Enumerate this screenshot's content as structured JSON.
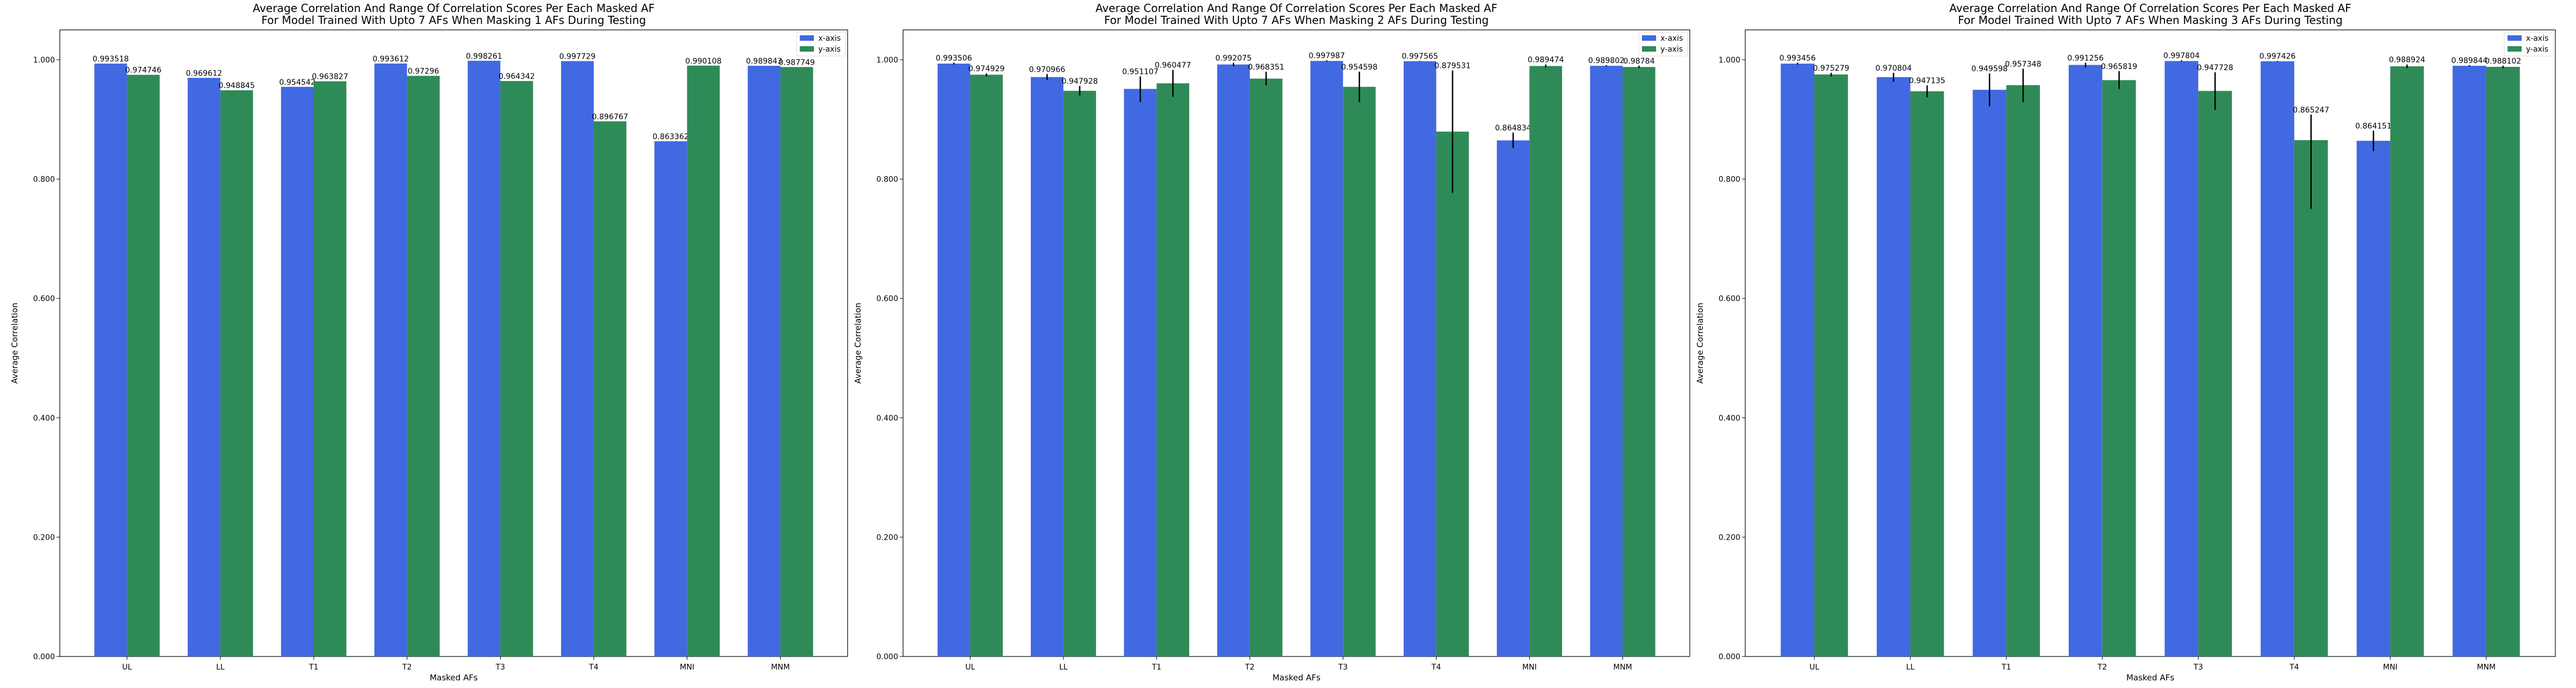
{
  "chart_data": [
    {
      "type": "bar",
      "title": "Average Correlation And Range Of Correlation Scores Per Each Masked AF\nFor Model Trained With Upto 7 AFs When Masking 1 AFs During Testing",
      "xlabel": "Masked AFs",
      "ylabel": "Average Correlation",
      "ylim": [
        0,
        1.05
      ],
      "yticks": [
        "0.000",
        "0.200",
        "0.400",
        "0.600",
        "0.800",
        "1.000"
      ],
      "categories": [
        "UL",
        "LL",
        "T1",
        "T2",
        "T3",
        "T4",
        "MNI",
        "MNM"
      ],
      "legend_position": "top-right",
      "series": [
        {
          "name": "x-axis",
          "color": "#4169e1",
          "values": [
            0.993518,
            0.969612,
            0.954542,
            0.993612,
            0.998261,
            0.997729,
            0.863362,
            0.989843
          ],
          "labels": [
            "0.993518",
            "0.969612",
            "0.954542",
            "0.993612",
            "0.998261",
            "0.997729",
            "0.863362",
            "0.989843"
          ],
          "err_low": [
            0.993518,
            0.969612,
            0.954542,
            0.993612,
            0.998261,
            0.997729,
            0.863362,
            0.989843
          ],
          "err_high": [
            0.993518,
            0.969612,
            0.954542,
            0.993612,
            0.998261,
            0.997729,
            0.863362,
            0.989843
          ]
        },
        {
          "name": "y-axis",
          "color": "#2e8b57",
          "values": [
            0.974746,
            0.948845,
            0.963827,
            0.97296,
            0.964342,
            0.896767,
            0.990108,
            0.987749
          ],
          "labels": [
            "0.974746",
            "0.948845",
            "0.963827",
            "0.97296",
            "0.964342",
            "0.896767",
            "0.990108",
            "0.987749"
          ],
          "err_low": [
            0.974746,
            0.948845,
            0.963827,
            0.97296,
            0.964342,
            0.896767,
            0.990108,
            0.987749
          ],
          "err_high": [
            0.974746,
            0.948845,
            0.963827,
            0.97296,
            0.964342,
            0.896767,
            0.990108,
            0.987749
          ]
        }
      ]
    },
    {
      "type": "bar",
      "title": "Average Correlation And Range Of Correlation Scores Per Each Masked AF\nFor Model Trained With Upto 7 AFs When Masking 2 AFs During Testing",
      "xlabel": "Masked AFs",
      "ylabel": "Average Correlation",
      "ylim": [
        0,
        1.05
      ],
      "yticks": [
        "0.000",
        "0.200",
        "0.400",
        "0.600",
        "0.800",
        "1.000"
      ],
      "categories": [
        "UL",
        "LL",
        "T1",
        "T2",
        "T3",
        "T4",
        "MNI",
        "MNM"
      ],
      "legend_position": "top-right",
      "series": [
        {
          "name": "x-axis",
          "color": "#4169e1",
          "values": [
            0.993506,
            0.970966,
            0.951107,
            0.992075,
            0.997987,
            0.997565,
            0.864834,
            0.989802
          ],
          "labels": [
            "0.993506",
            "0.970966",
            "0.951107",
            "0.992075",
            "0.997987",
            "0.997565",
            "0.864834",
            "0.989802"
          ],
          "err_low": [
            0.992,
            0.966,
            0.929,
            0.989,
            0.997,
            0.997,
            0.852,
            0.989
          ],
          "err_high": [
            0.995,
            0.976,
            0.972,
            0.995,
            0.999,
            0.998,
            0.878,
            0.991
          ]
        },
        {
          "name": "y-axis",
          "color": "#2e8b57",
          "values": [
            0.974929,
            0.947928,
            0.960477,
            0.968351,
            0.954598,
            0.879531,
            0.989474,
            0.98784
          ],
          "labels": [
            "0.974929",
            "0.947928",
            "0.960477",
            "0.968351",
            "0.954598",
            "0.879531",
            "0.989474",
            "0.98784"
          ],
          "err_low": [
            0.972,
            0.94,
            0.938,
            0.957,
            0.929,
            0.777,
            0.987,
            0.986
          ],
          "err_high": [
            0.977,
            0.956,
            0.983,
            0.98,
            0.98,
            0.982,
            0.992,
            0.99
          ]
        }
      ]
    },
    {
      "type": "bar",
      "title": "Average Correlation And Range Of Correlation Scores Per Each Masked AF\nFor Model Trained With Upto 7 AFs When Masking 3 AFs During Testing",
      "xlabel": "Masked AFs",
      "ylabel": "Average Correlation",
      "ylim": [
        0,
        1.05
      ],
      "yticks": [
        "0.000",
        "0.200",
        "0.400",
        "0.600",
        "0.800",
        "1.000"
      ],
      "categories": [
        "UL",
        "LL",
        "T1",
        "T2",
        "T3",
        "T4",
        "MNI",
        "MNM"
      ],
      "legend_position": "top-right",
      "series": [
        {
          "name": "x-axis",
          "color": "#4169e1",
          "values": [
            0.993456,
            0.970804,
            0.949598,
            0.991256,
            0.997804,
            0.997426,
            0.864151,
            0.989844
          ],
          "labels": [
            "0.993456",
            "0.970804",
            "0.949598",
            "0.991256",
            "0.997804",
            "0.997426",
            "0.864151",
            "0.989844"
          ],
          "err_low": [
            0.992,
            0.963,
            0.922,
            0.987,
            0.997,
            0.997,
            0.847,
            0.989
          ],
          "err_high": [
            0.995,
            0.978,
            0.977,
            0.995,
            0.999,
            0.998,
            0.881,
            0.991
          ]
        },
        {
          "name": "y-axis",
          "color": "#2e8b57",
          "values": [
            0.975279,
            0.947135,
            0.957348,
            0.965819,
            0.947728,
            0.865247,
            0.988924,
            0.988102
          ],
          "labels": [
            "0.975279",
            "0.947135",
            "0.957348",
            "0.965819",
            "0.947728",
            "0.865247",
            "0.988924",
            "0.988102"
          ],
          "err_low": [
            0.972,
            0.937,
            0.929,
            0.951,
            0.916,
            0.75,
            0.986,
            0.986
          ],
          "err_high": [
            0.978,
            0.957,
            0.985,
            0.981,
            0.979,
            0.908,
            0.992,
            0.99
          ]
        }
      ]
    }
  ]
}
